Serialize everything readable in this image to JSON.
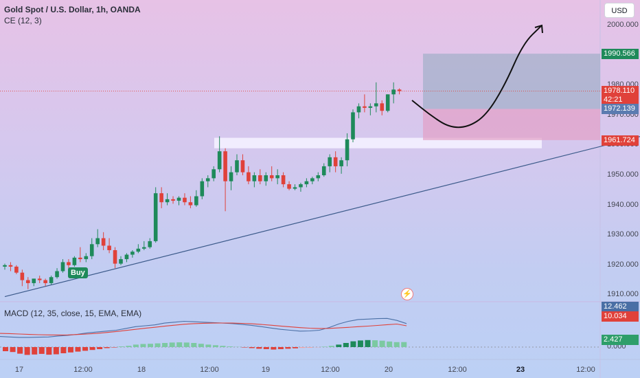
{
  "header": {
    "symbol": "Gold Spot / U.S. Dollar, 1h, OANDA",
    "indicator": "CE (12, 3)"
  },
  "macd_label": "MACD (12, 35, close, 15, EMA, EMA)",
  "currency_button": "USD",
  "buy_label": "Buy",
  "price_labels": [
    {
      "text": "1990.566",
      "bg": "#1e8a5a"
    },
    {
      "text": "1978.110",
      "text2": "42:21",
      "bg": "#e0413a"
    },
    {
      "text": "1972.139",
      "bg": "#5b7bb0"
    },
    {
      "text": "1961.724",
      "bg": "#e0413a"
    }
  ],
  "macd_labels": [
    {
      "text": "12.462",
      "bg": "#4a6fa5"
    },
    {
      "text": "10.034",
      "bg": "#e0413a"
    },
    {
      "text": "2.427",
      "bg": "#2e9e6a",
      "fg": "#fff"
    }
  ],
  "macd_zero_label": "0.000",
  "colors": {
    "up": "#1e8a5a",
    "down": "#e0413a",
    "trend": "#3b5a8a",
    "macd": "#4a6fa5",
    "signal": "#e0413a"
  },
  "chart_data": {
    "type": "candlestick",
    "y_ticks": [
      "2000.000",
      "1990.000",
      "1980.000",
      "1970.000",
      "1960.000",
      "1950.000",
      "1940.000",
      "1930.000",
      "1920.000",
      "1910.000"
    ],
    "y_values": [
      2000,
      1990,
      1980,
      1970,
      1960,
      1950,
      1940,
      1930,
      1920,
      1910
    ],
    "x_ticks": [
      {
        "label": "17",
        "bold": false
      },
      {
        "label": "12:00",
        "bold": false
      },
      {
        "label": "18",
        "bold": false
      },
      {
        "label": "12:00",
        "bold": false
      },
      {
        "label": "19",
        "bold": false
      },
      {
        "label": "12:00",
        "bold": false
      },
      {
        "label": "20",
        "bold": false
      },
      {
        "label": "12:00",
        "bold": false
      },
      {
        "label": "23",
        "bold": true
      },
      {
        "label": "12:00",
        "bold": false
      }
    ],
    "ohlc": [
      [
        1919.5,
        1920.5,
        1918.5,
        1920
      ],
      [
        1920,
        1921,
        1918,
        1919.5
      ],
      [
        1919.5,
        1920,
        1917,
        1917.5
      ],
      [
        1917.5,
        1918.5,
        1913,
        1915
      ],
      [
        1915,
        1916,
        1912,
        1914
      ],
      [
        1914,
        1915.5,
        1913,
        1915.5
      ],
      [
        1915.5,
        1916.5,
        1914,
        1915
      ],
      [
        1915,
        1915.5,
        1913,
        1914
      ],
      [
        1914,
        1916.5,
        1913.5,
        1916
      ],
      [
        1916,
        1919,
        1915.5,
        1918
      ],
      [
        1918,
        1922,
        1917.5,
        1921
      ],
      [
        1921,
        1922,
        1919,
        1920
      ],
      [
        1920,
        1923,
        1919.5,
        1922.5
      ],
      [
        1922.5,
        1926,
        1921,
        1922
      ],
      [
        1922,
        1924,
        1921,
        1923
      ],
      [
        1923,
        1929,
        1922,
        1927
      ],
      [
        1927,
        1932,
        1926,
        1929
      ],
      [
        1929,
        1931,
        1925,
        1926.5
      ],
      [
        1926.5,
        1929,
        1924,
        1925
      ],
      [
        1925,
        1926,
        1919,
        1920.5
      ],
      [
        1920.5,
        1923,
        1920,
        1922
      ],
      [
        1922,
        1924,
        1921,
        1923.5
      ],
      [
        1923.5,
        1925,
        1922.5,
        1924.5
      ],
      [
        1924.5,
        1927,
        1924,
        1925.5
      ],
      [
        1925.5,
        1928,
        1925,
        1926
      ],
      [
        1926,
        1929,
        1925.5,
        1928
      ],
      [
        1928,
        1946,
        1927.5,
        1944
      ],
      [
        1944,
        1946,
        1939,
        1941
      ],
      [
        1941,
        1944,
        1940,
        1942
      ],
      [
        1942,
        1943,
        1940.5,
        1941.5
      ],
      [
        1941.5,
        1943,
        1940,
        1942.5
      ],
      [
        1942.5,
        1944,
        1940,
        1941
      ],
      [
        1941,
        1943,
        1939,
        1940
      ],
      [
        1940,
        1945,
        1939.5,
        1943
      ],
      [
        1943,
        1949,
        1942,
        1948
      ],
      [
        1948,
        1950,
        1946,
        1949
      ],
      [
        1949,
        1953,
        1948,
        1952
      ],
      [
        1952,
        1963,
        1951,
        1958
      ],
      [
        1958,
        1959,
        1938,
        1948
      ],
      [
        1948,
        1953,
        1945,
        1951
      ],
      [
        1951,
        1957,
        1950,
        1955
      ],
      [
        1955,
        1957,
        1950,
        1951
      ],
      [
        1951,
        1953,
        1947,
        1948
      ],
      [
        1948,
        1951,
        1946,
        1950
      ],
      [
        1950,
        1952,
        1947,
        1948
      ],
      [
        1948,
        1951,
        1946.5,
        1950
      ],
      [
        1950,
        1953,
        1948,
        1949
      ],
      [
        1949,
        1952,
        1947,
        1950
      ],
      [
        1950,
        1951,
        1946,
        1947
      ],
      [
        1947,
        1948,
        1945,
        1945.5
      ],
      [
        1945.5,
        1947,
        1945,
        1946
      ],
      [
        1946,
        1947.5,
        1944.5,
        1947
      ],
      [
        1947,
        1949,
        1946,
        1948
      ],
      [
        1948,
        1949.5,
        1947,
        1949
      ],
      [
        1949,
        1951,
        1948,
        1950
      ],
      [
        1950,
        1954,
        1949.5,
        1953
      ],
      [
        1953,
        1957,
        1951,
        1956
      ],
      [
        1956,
        1958,
        1951,
        1953
      ],
      [
        1953,
        1956,
        1950.5,
        1955
      ],
      [
        1955,
        1964,
        1953,
        1962
      ],
      [
        1962,
        1972,
        1961,
        1971
      ],
      [
        1971,
        1974,
        1969,
        1973
      ],
      [
        1973,
        1977,
        1971,
        1972.5
      ],
      [
        1972.5,
        1974,
        1970,
        1973
      ],
      [
        1973,
        1981,
        1971,
        1974
      ],
      [
        1974,
        1975,
        1970,
        1971.5
      ],
      [
        1971.5,
        1977,
        1971,
        1977
      ],
      [
        1977,
        1981,
        1974,
        1978.6
      ],
      [
        1978.6,
        1979,
        1977,
        1978.11
      ]
    ],
    "trendline": [
      [
        1909.5,
        0
      ],
      [
        1979.3,
        143
      ]
    ],
    "zone": {
      "low": 1959.0,
      "high": 1962.5
    },
    "position": {
      "entry": 1972.139,
      "target": 1990.566,
      "stop": 1961.724
    },
    "projection": [
      1975,
      1970,
      1966,
      1966,
      1970,
      1980,
      1994,
      2000
    ],
    "macd_line": [
      -2,
      -2.5,
      -3,
      -3,
      -2.8,
      -2.5,
      -1.5,
      -0.8,
      0.5,
      2,
      3,
      4,
      5,
      7,
      9,
      10,
      11,
      13,
      14,
      15,
      14.5,
      14,
      13.5,
      13,
      12.5,
      11.5,
      10.5,
      9,
      7.5,
      6,
      5,
      4,
      4.2,
      5,
      8,
      12,
      15,
      17,
      17.5,
      18,
      18.2,
      16,
      12.462
    ],
    "signal_line": [
      1.5,
      1.2,
      0.8,
      0.3,
      0,
      -0.2,
      -0.3,
      -0.2,
      0.2,
      0.8,
      1.5,
      2.5,
      3.5,
      4.8,
      6,
      7.2,
      8.3,
      9.5,
      10.6,
      11.7,
      12.4,
      12.8,
      13,
      13.1,
      13,
      12.7,
      12.2,
      11.5,
      10.6,
      9.7,
      8.8,
      7.9,
      7.3,
      7,
      7.1,
      7.6,
      8.2,
      9,
      9.6,
      10.4,
      11.2,
      11.9,
      10.034
    ],
    "histogram": [
      -2,
      -2.4,
      -3.2,
      -3.8,
      -3.6,
      -3.3,
      -3.7,
      -3.5,
      -3,
      -2.6,
      -2.2,
      -1.8,
      -1.4,
      -1,
      -0.5,
      -0.2,
      0.3,
      0.6,
      1.2,
      1.5,
      1.6,
      1.8,
      2.0,
      2.2,
      2.3,
      2.2,
      2.0,
      1.6,
      1.2,
      0.9,
      0.6,
      0.3,
      0.1,
      -0.2,
      -0.5,
      -0.8,
      -1.0,
      -1.2,
      -1.0,
      -0.8,
      -0.6,
      -0.4,
      -0.3,
      -0.1,
      0.2,
      0.6,
      1.2,
      2.0,
      2.8,
      3.2,
      3.4,
      3.3,
      3.1,
      2.7,
      2.4,
      2.427
    ]
  }
}
